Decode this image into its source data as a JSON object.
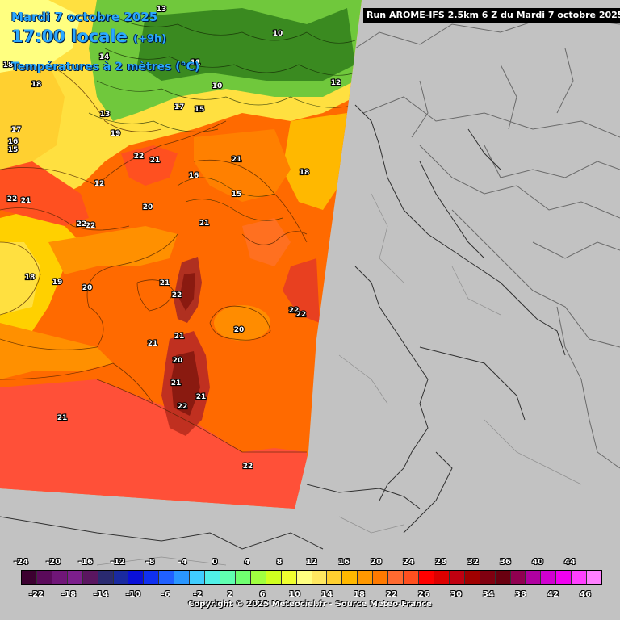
{
  "header": {
    "date_line": "Mardi 7 octobre 2025",
    "time_line": "17:00 locale",
    "lead_time": "(+9h)",
    "variable_line": "Températures à 2 mètres (°C)"
  },
  "run_info": "Run AROME-IFS 2.5km 6 Z du Mardi 7 octobre 2025",
  "legend": {
    "top_labels": [
      "-24",
      "-20",
      "-16",
      "-12",
      "-8",
      "-4",
      "0",
      "4",
      "8",
      "12",
      "16",
      "20",
      "24",
      "28",
      "32",
      "36",
      "40",
      "44"
    ],
    "bottom_labels": [
      "-22",
      "-18",
      "-14",
      "-10",
      "-6",
      "-2",
      "2",
      "6",
      "10",
      "14",
      "18",
      "22",
      "26",
      "30",
      "34",
      "38",
      "42",
      "46"
    ],
    "colors": [
      "#3c0030",
      "#5a0a5a",
      "#701678",
      "#7c1e8c",
      "#5a1660",
      "#2a2a70",
      "#1a2aa0",
      "#0a10d8",
      "#1030f0",
      "#2060ff",
      "#2a96ff",
      "#40cdff",
      "#50f0e8",
      "#60ffb0",
      "#70ff70",
      "#a0ff40",
      "#d0ff20",
      "#f0ff30",
      "#ffff80",
      "#ffe860",
      "#ffd030",
      "#ffb800",
      "#ff9800",
      "#ff7a00",
      "#ff6a30",
      "#ff5020",
      "#ff0000",
      "#dd0000",
      "#c00010",
      "#a00000",
      "#800010",
      "#6a0010",
      "#900050",
      "#b000a0",
      "#d000d0",
      "#f000f0",
      "#ff40ff",
      "#ff80ff"
    ]
  },
  "map_labels": [
    {
      "t": "13"
    },
    {
      "t": "18"
    },
    {
      "t": "18"
    },
    {
      "t": "17"
    },
    {
      "t": "16"
    },
    {
      "t": "15"
    },
    {
      "t": "22"
    },
    {
      "t": "21"
    },
    {
      "t": "22"
    },
    {
      "t": "18"
    },
    {
      "t": "19"
    },
    {
      "t": "20"
    },
    {
      "t": "20"
    },
    {
      "t": "21"
    },
    {
      "t": "22"
    },
    {
      "t": "21"
    },
    {
      "t": "22"
    },
    {
      "t": "21"
    },
    {
      "t": "21"
    },
    {
      "t": "20"
    },
    {
      "t": "21"
    },
    {
      "t": "21"
    },
    {
      "t": "22"
    },
    {
      "t": "21"
    },
    {
      "t": "22"
    },
    {
      "t": "20"
    },
    {
      "t": "22"
    },
    {
      "t": "22"
    },
    {
      "t": "22"
    },
    {
      "t": "18"
    },
    {
      "t": "21"
    },
    {
      "t": "21"
    },
    {
      "t": "16"
    },
    {
      "t": "15"
    },
    {
      "t": "12"
    },
    {
      "t": "10"
    },
    {
      "t": "10"
    },
    {
      "t": "11"
    },
    {
      "t": "12"
    },
    {
      "t": "13"
    },
    {
      "t": "14"
    },
    {
      "t": "17"
    },
    {
      "t": "19"
    },
    {
      "t": "15"
    }
  ],
  "copyright": "Copyright © 2025 Meteociel.fr - Source Meteo-France"
}
